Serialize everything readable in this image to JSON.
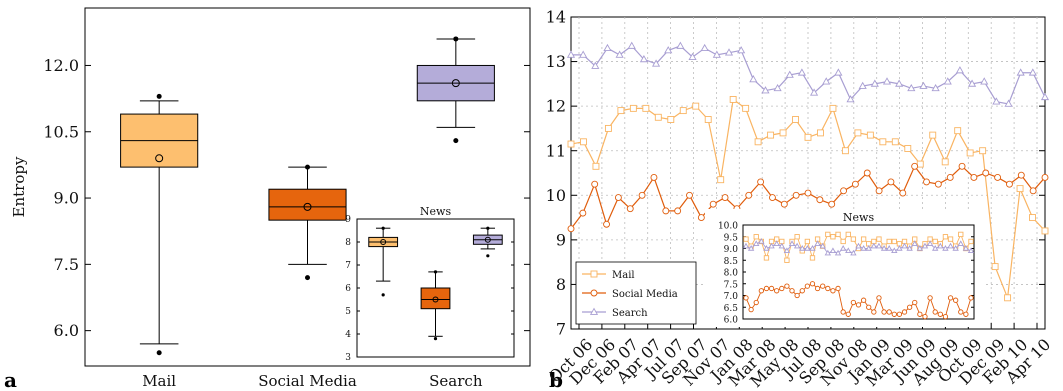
{
  "panel_a": {
    "letter": "a",
    "colors": {
      "Mail": "#fdbf6f",
      "Social Media": "#e6650d",
      "Search": "#b4acd9"
    }
  },
  "panel_b": {
    "letter": "b",
    "colors": {
      "Mail": "#f9b462",
      "Social Media": "#e05d0c",
      "Search": "#a89ed2"
    }
  },
  "chart_data": [
    {
      "type": "box",
      "title": "",
      "ylabel": "Entropy",
      "categories": [
        "Mail",
        "Social Media",
        "Search"
      ],
      "ylim": [
        5.2,
        13.3
      ],
      "yticks": [
        "6.0",
        "7.5",
        "9.0",
        "10.5",
        "12.0"
      ],
      "boxes": [
        {
          "name": "Mail",
          "whisker_low": 5.7,
          "q1": 9.7,
          "median": 10.3,
          "q3": 10.9,
          "whisker_high": 11.2,
          "mean": 9.9,
          "outliers": [
            5.5,
            11.3
          ]
        },
        {
          "name": "Social Media",
          "whisker_low": 7.5,
          "q1": 8.5,
          "median": 8.8,
          "q3": 9.2,
          "whisker_high": 9.7,
          "mean": 8.8,
          "outliers": [
            7.2,
            9.7
          ]
        },
        {
          "name": "Search",
          "whisker_low": 10.6,
          "q1": 11.2,
          "median": 11.6,
          "q3": 12.0,
          "whisker_high": 12.6,
          "mean": 11.6,
          "outliers": [
            10.3,
            12.6
          ]
        }
      ]
    },
    {
      "type": "box",
      "title": "News",
      "categories": [
        "Mail",
        "Social Media",
        "Search"
      ],
      "ylim": [
        3,
        9
      ],
      "yticks": [
        "3",
        "4",
        "5",
        "6",
        "7",
        "8",
        "9"
      ],
      "boxes": [
        {
          "name": "Mail",
          "whisker_low": 6.3,
          "q1": 7.8,
          "median": 8.0,
          "q3": 8.2,
          "whisker_high": 8.6,
          "mean": 8.0,
          "outliers": [
            5.7,
            8.6
          ]
        },
        {
          "name": "Social Media",
          "whisker_low": 3.9,
          "q1": 5.1,
          "median": 5.5,
          "q3": 6.0,
          "whisker_high": 6.7,
          "mean": 5.5,
          "outliers": [
            3.8,
            6.7
          ]
        },
        {
          "name": "Search",
          "whisker_low": 7.7,
          "q1": 7.9,
          "median": 8.1,
          "q3": 8.3,
          "whisker_high": 8.6,
          "mean": 8.1,
          "outliers": [
            7.4,
            8.6
          ]
        }
      ]
    },
    {
      "type": "line",
      "title": "",
      "ylim": [
        7,
        14
      ],
      "yticks": [
        "7",
        "8",
        "9",
        "10",
        "11",
        "12",
        "13",
        "14"
      ],
      "xticks": [
        "Oct 06",
        "Dec 06",
        "Feb 07",
        "Apr 07",
        "Jul 07",
        "Sep 07",
        "Nov 07",
        "Jan 08",
        "Mar 08",
        "May 08",
        "Jul 08",
        "Sep 08",
        "Nov 08",
        "Jan 09",
        "Mar 09",
        "Jun 09",
        "Aug 09",
        "Oct 09",
        "Dec 09",
        "Feb 10",
        "Apr 10"
      ],
      "legend": "lower-left",
      "series": [
        {
          "name": "Mail",
          "marker": "square",
          "values": [
            11.15,
            11.2,
            10.65,
            11.5,
            11.9,
            11.95,
            11.95,
            11.75,
            11.7,
            11.9,
            12.0,
            11.7,
            10.35,
            12.15,
            11.95,
            11.2,
            11.35,
            11.4,
            11.7,
            11.3,
            11.4,
            11.95,
            11.0,
            11.4,
            11.35,
            11.2,
            11.2,
            11.05,
            10.7,
            11.35,
            10.75,
            11.45,
            10.95,
            11.0,
            8.4,
            7.7,
            10.15,
            9.5,
            9.2
          ]
        },
        {
          "name": "Social Media",
          "marker": "circle",
          "values": [
            9.25,
            9.6,
            10.25,
            9.35,
            9.95,
            9.7,
            10.0,
            10.4,
            9.65,
            9.65,
            10.0,
            9.5,
            9.8,
            9.95,
            9.7,
            10.0,
            10.3,
            9.95,
            9.8,
            10.0,
            10.05,
            9.9,
            9.8,
            10.1,
            10.25,
            10.5,
            10.1,
            10.3,
            10.05,
            10.65,
            10.3,
            10.25,
            10.4,
            10.65,
            10.4,
            10.5,
            10.4,
            10.25,
            10.45,
            10.1,
            10.4
          ]
        },
        {
          "name": "Search",
          "marker": "triangle",
          "values": [
            13.15,
            13.15,
            12.9,
            13.3,
            13.15,
            13.35,
            13.05,
            12.95,
            13.25,
            13.35,
            13.1,
            13.3,
            13.15,
            13.2,
            13.25,
            12.6,
            12.35,
            12.4,
            12.7,
            12.75,
            12.3,
            12.55,
            12.75,
            12.15,
            12.45,
            12.5,
            12.55,
            12.5,
            12.4,
            12.45,
            12.4,
            12.55,
            12.8,
            12.5,
            12.55,
            12.1,
            12.05,
            12.75,
            12.75,
            12.2
          ]
        }
      ]
    },
    {
      "type": "line",
      "title": "News",
      "ylim": [
        6.0,
        10.0
      ],
      "yticks": [
        "6.0",
        "6.5",
        "7.0",
        "7.5",
        "8.0",
        "8.5",
        "9.0",
        "9.5",
        "10.0"
      ],
      "series": [
        {
          "name": "Mail",
          "marker": "square",
          "values": [
            9.4,
            9.1,
            9.5,
            9.3,
            8.6,
            9.3,
            9.4,
            9.3,
            8.5,
            9.3,
            9.5,
            8.9,
            9.3,
            8.6,
            9.4,
            9.1,
            9.6,
            9.5,
            9.6,
            9.3,
            9.6,
            9.4,
            9.0,
            9.4,
            9.2,
            9.3,
            9.4,
            9.1,
            9.3,
            9.3,
            9.2,
            9.3,
            9.1,
            9.4,
            9.0,
            9.2,
            9.4,
            9.3,
            9.2,
            9.5,
            9.4,
            9.1,
            9.6,
            9.0,
            9.3
          ]
        },
        {
          "name": "Social Media",
          "marker": "circle",
          "values": [
            6.9,
            6.4,
            6.7,
            7.2,
            7.3,
            7.3,
            7.2,
            7.3,
            7.4,
            7.2,
            7.0,
            7.2,
            7.4,
            7.5,
            7.3,
            7.4,
            7.3,
            7.2,
            7.3,
            6.3,
            6.2,
            6.7,
            6.6,
            6.8,
            6.5,
            6.3,
            6.9,
            6.3,
            6.3,
            6.2,
            6.2,
            6.3,
            6.5,
            6.7,
            6.2,
            6.1,
            6.9,
            6.3,
            6.2,
            6.1,
            6.9,
            6.8,
            6.3,
            6.2,
            6.9
          ]
        },
        {
          "name": "Search",
          "marker": "triangle",
          "values": [
            9.1,
            9.0,
            9.2,
            9.3,
            9.0,
            9.1,
            9.2,
            9.1,
            8.9,
            9.2,
            9.1,
            9.0,
            9.0,
            9.0,
            9.2,
            9.1,
            8.8,
            8.9,
            8.8,
            9.0,
            8.9,
            8.8,
            9.1,
            9.0,
            9.0,
            9.1,
            9.1,
            9.0,
            9.0,
            8.9,
            9.0,
            9.1,
            9.0,
            9.2,
            9.0,
            9.1,
            9.2,
            9.0,
            9.1,
            9.0,
            9.1,
            9.0,
            9.2,
            9.0,
            8.9
          ]
        }
      ]
    }
  ]
}
